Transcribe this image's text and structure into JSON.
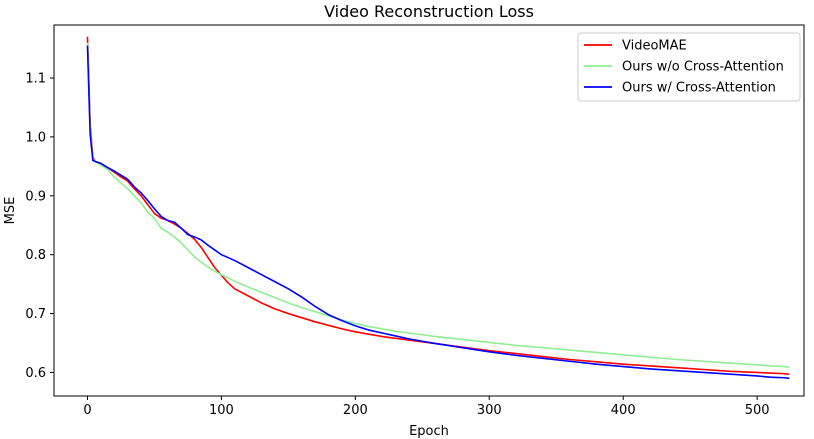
{
  "chart_data": {
    "type": "line",
    "title": "Video Reconstruction Loss",
    "xlabel": "Epoch",
    "ylabel": "MSE",
    "xlim": [
      -25,
      535
    ],
    "ylim": [
      0.56,
      1.19
    ],
    "xticks": [
      0,
      100,
      200,
      300,
      400,
      500
    ],
    "yticks": [
      0.6,
      0.7,
      0.8,
      0.9,
      1.0,
      1.1
    ],
    "grid": false,
    "legend_position": "top-right",
    "series": [
      {
        "name": "VideoMAE",
        "color": "#ff0000",
        "x": [
          0,
          2,
          4,
          6,
          10,
          15,
          20,
          25,
          30,
          35,
          40,
          45,
          50,
          55,
          60,
          65,
          70,
          75,
          80,
          85,
          90,
          95,
          100,
          105,
          110,
          120,
          130,
          140,
          150,
          160,
          170,
          180,
          190,
          200,
          210,
          220,
          230,
          240,
          250,
          260,
          280,
          300,
          320,
          340,
          360,
          380,
          400,
          420,
          440,
          460,
          480,
          500,
          510,
          520,
          524
        ],
        "y": [
          1.17,
          1.02,
          0.965,
          0.958,
          0.955,
          0.948,
          0.94,
          0.932,
          0.925,
          0.912,
          0.9,
          0.885,
          0.87,
          0.862,
          0.858,
          0.852,
          0.845,
          0.836,
          0.826,
          0.812,
          0.795,
          0.778,
          0.765,
          0.752,
          0.742,
          0.73,
          0.718,
          0.708,
          0.7,
          0.693,
          0.686,
          0.68,
          0.674,
          0.669,
          0.665,
          0.661,
          0.658,
          0.655,
          0.652,
          0.649,
          0.643,
          0.637,
          0.632,
          0.627,
          0.622,
          0.618,
          0.614,
          0.611,
          0.608,
          0.605,
          0.602,
          0.6,
          0.599,
          0.598,
          0.597
        ]
      },
      {
        "name": "Ours w/o Cross-Attention",
        "color": "#90ee90",
        "x": [
          0,
          2,
          4,
          6,
          10,
          15,
          20,
          25,
          30,
          35,
          40,
          45,
          50,
          55,
          60,
          65,
          70,
          75,
          80,
          85,
          90,
          95,
          100,
          110,
          120,
          130,
          140,
          150,
          160,
          170,
          180,
          190,
          200,
          210,
          220,
          230,
          240,
          250,
          260,
          280,
          300,
          320,
          340,
          360,
          380,
          400,
          420,
          440,
          460,
          480,
          500,
          510,
          520,
          524
        ],
        "y": [
          1.16,
          1.01,
          0.962,
          0.958,
          0.952,
          0.945,
          0.932,
          0.922,
          0.912,
          0.9,
          0.888,
          0.872,
          0.862,
          0.845,
          0.838,
          0.83,
          0.82,
          0.808,
          0.796,
          0.787,
          0.779,
          0.772,
          0.766,
          0.755,
          0.745,
          0.736,
          0.727,
          0.718,
          0.71,
          0.703,
          0.696,
          0.689,
          0.683,
          0.678,
          0.674,
          0.67,
          0.667,
          0.664,
          0.661,
          0.656,
          0.651,
          0.646,
          0.642,
          0.638,
          0.634,
          0.63,
          0.626,
          0.622,
          0.619,
          0.616,
          0.613,
          0.611,
          0.61,
          0.609
        ]
      },
      {
        "name": "Ours w/ Cross-Attention",
        "color": "#0000ff",
        "x": [
          0,
          2,
          4,
          6,
          10,
          15,
          20,
          25,
          30,
          35,
          40,
          45,
          50,
          55,
          60,
          65,
          70,
          75,
          80,
          85,
          90,
          95,
          100,
          110,
          120,
          130,
          140,
          150,
          160,
          170,
          180,
          190,
          200,
          210,
          220,
          230,
          240,
          250,
          260,
          280,
          300,
          320,
          340,
          360,
          380,
          400,
          420,
          440,
          460,
          480,
          500,
          510,
          520,
          524
        ],
        "y": [
          1.155,
          1.005,
          0.96,
          0.958,
          0.955,
          0.948,
          0.942,
          0.935,
          0.928,
          0.915,
          0.905,
          0.892,
          0.878,
          0.865,
          0.858,
          0.855,
          0.845,
          0.834,
          0.83,
          0.825,
          0.816,
          0.808,
          0.8,
          0.79,
          0.778,
          0.766,
          0.754,
          0.742,
          0.728,
          0.712,
          0.698,
          0.688,
          0.679,
          0.672,
          0.667,
          0.662,
          0.657,
          0.653,
          0.649,
          0.642,
          0.635,
          0.629,
          0.624,
          0.619,
          0.614,
          0.61,
          0.606,
          0.603,
          0.6,
          0.597,
          0.594,
          0.592,
          0.591,
          0.59
        ]
      }
    ]
  }
}
